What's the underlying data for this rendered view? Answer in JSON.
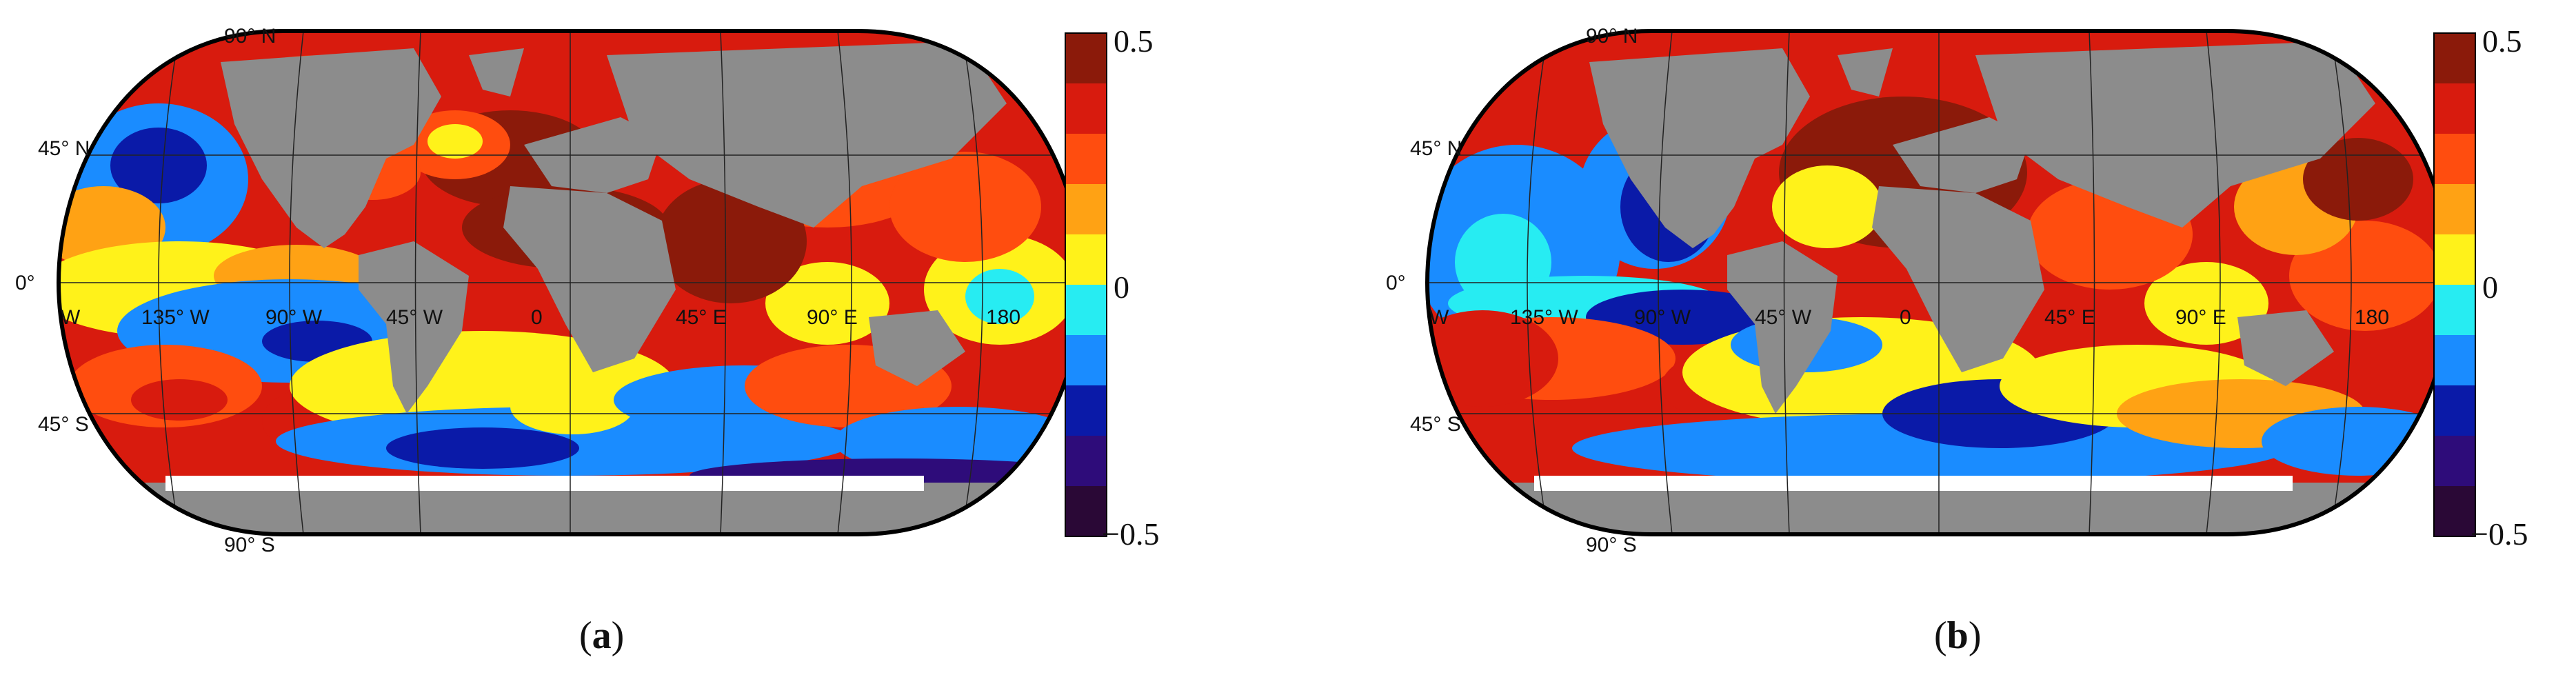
{
  "panels": [
    {
      "id": "a",
      "caption_open": "(",
      "caption_letter": "a",
      "caption_close": ")",
      "lat_labels": [
        "90° N",
        "45° N",
        "0°",
        "45° S",
        "90° S"
      ],
      "lon_labels": [
        "W",
        "135° W",
        "90° W",
        "45° W",
        "0",
        "45° E",
        "90° E",
        "180"
      ],
      "colorbar": {
        "max_label": "0.5",
        "mid_label": "0",
        "min_label": "−0.5"
      }
    },
    {
      "id": "b",
      "caption_open": "(",
      "caption_letter": "b",
      "caption_close": ")",
      "lat_labels": [
        "90° N",
        "45° N",
        "0°",
        "45° S",
        "90° S"
      ],
      "lon_labels": [
        "W",
        "135° W",
        "90° W",
        "45° W",
        "0",
        "45° E",
        "90° E",
        "180"
      ],
      "colorbar": {
        "max_label": "0.5",
        "mid_label": "0",
        "min_label": "−0.5"
      }
    }
  ],
  "colorscale": [
    "#8b1a0a",
    "#d81b0e",
    "#ff4d0f",
    "#ffa214",
    "#fff21a",
    "#27ecf2",
    "#1a8cff",
    "#0a1aa8",
    "#2e0c7a",
    "#2a0836"
  ],
  "land_color": "#8c8c8c",
  "ice_color": "#ffffff"
}
